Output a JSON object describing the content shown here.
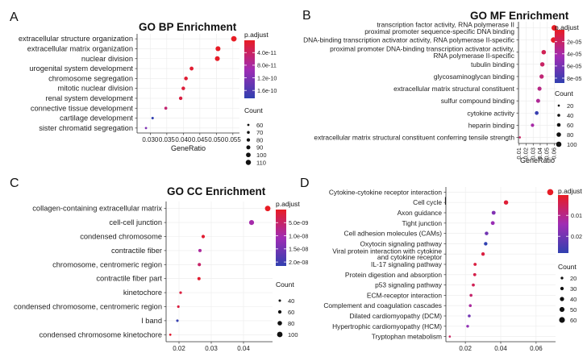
{
  "chart_data": [
    {
      "panel": "A",
      "type": "scatter",
      "title": "GO BP Enrichment",
      "xlabel": "GeneRatio",
      "ylabel": "",
      "xlim": [
        0.026,
        0.057
      ],
      "xticks": [
        "0.030",
        "0.035",
        "0.040",
        "0.045",
        "0.050",
        "0.055"
      ],
      "xtick_values": [
        0.03,
        0.035,
        0.04,
        0.045,
        0.05,
        0.055
      ],
      "categories": [
        "extracellular structure organization",
        "extracellular matrix organization",
        "nuclear division",
        "urogenital system development",
        "chromosome segregation",
        "mitotic nuclear division",
        "renal system development",
        "connective tissue development",
        "cartilage development",
        "sister chromatid segregation"
      ],
      "x": [
        0.0553,
        0.0505,
        0.0503,
        0.0425,
        0.0408,
        0.04,
        0.0392,
        0.0347,
        0.0307,
        0.0287
      ],
      "count": [
        115,
        105,
        104,
        88,
        85,
        83,
        81,
        72,
        64,
        60
      ],
      "color_value": [
        1e-12,
        2e-12,
        3e-12,
        1e-11,
        1.2e-11,
        1.5e-11,
        2e-11,
        5e-11,
        1.85e-10,
        1.2e-10
      ],
      "color_legend": {
        "title": "p.adjust",
        "ticks": [
          "4.0e-11",
          "8.0e-11",
          "1.2e-10",
          "1.6e-10"
        ],
        "tick_values": [
          4e-11,
          8e-11,
          1.2e-10,
          1.6e-10
        ],
        "range": [
          1e-12,
          1.85e-10
        ]
      },
      "size_legend": {
        "title": "Count",
        "labels": [
          "60",
          "70",
          "80",
          "90",
          "100",
          "110"
        ],
        "values": [
          60,
          70,
          80,
          90,
          100,
          110
        ],
        "range": [
          60,
          115
        ]
      }
    },
    {
      "panel": "B",
      "type": "scatter",
      "title": "GO MF Enrichment",
      "xlabel": "GeneRatio",
      "ylabel": "",
      "xlim": [
        0.009,
        0.063
      ],
      "xticks": [
        "0.01",
        "0.02",
        "0.03",
        "0.04",
        "0.05",
        "0.06"
      ],
      "xtick_values": [
        0.01,
        0.02,
        0.03,
        0.04,
        0.05,
        0.06
      ],
      "categories": [
        [
          "transcription factor activity, RNA polymerase II",
          "proximal promoter sequence-specific DNA binding"
        ],
        [
          "DNA-binding transcription activator activity, RNA polymerase II-specific"
        ],
        [
          "proximal promoter DNA-binding transcription activator activity,",
          "RNA polymerase II-specific"
        ],
        [
          "tubulin binding"
        ],
        [
          "glycosaminoglycan binding"
        ],
        [
          "extracellular matrix structural constituent"
        ],
        [
          "sulfur compound binding"
        ],
        [
          "cytokine activity"
        ],
        [
          "heparin binding"
        ],
        [
          "extracellular matrix structural constituent conferring tensile strength"
        ]
      ],
      "x": [
        0.06,
        0.059,
        0.045,
        0.043,
        0.042,
        0.039,
        0.037,
        0.035,
        0.029,
        0.011
      ],
      "count": [
        105,
        103,
        80,
        77,
        75,
        70,
        67,
        62,
        52,
        18
      ],
      "color_value": [
        5e-07,
        1e-06,
        1.5e-05,
        2e-05,
        2.5e-05,
        3e-05,
        3.5e-05,
        8.5e-05,
        4e-05,
        2e-05
      ],
      "color_legend": {
        "title": "p.adjust",
        "ticks": [
          "2e-05",
          "4e-05",
          "6e-05",
          "8e-05"
        ],
        "tick_values": [
          2e-05,
          4e-05,
          6e-05,
          8e-05
        ],
        "range": [
          5e-07,
          8.8e-05
        ]
      },
      "size_legend": {
        "title": "Count",
        "labels": [
          "20",
          "40",
          "60",
          "80",
          "100"
        ],
        "values": [
          20,
          40,
          60,
          80,
          100
        ],
        "range": [
          15,
          105
        ]
      }
    },
    {
      "panel": "C",
      "type": "scatter",
      "title": "GO CC Enrichment",
      "xlabel": "GeneRatio",
      "ylabel": "",
      "xlim": [
        0.016,
        0.049
      ],
      "xticks": [
        "0.02",
        "0.03",
        "0.04"
      ],
      "xtick_values": [
        0.02,
        0.03,
        0.04
      ],
      "categories": [
        "collagen-containing extracellular matrix",
        "cell-cell junction",
        "condensed chromosome",
        "contractile fiber",
        "chromosome, centromeric region",
        "contractile fiber part",
        "kinetochore",
        "condensed chromosome, centromeric region",
        "I band",
        "condensed chromosome kinetochore"
      ],
      "x": [
        0.0475,
        0.0425,
        0.0275,
        0.0265,
        0.0263,
        0.0262,
        0.0205,
        0.0198,
        0.0195,
        0.0173
      ],
      "count": [
        100,
        90,
        58,
        56,
        56,
        55,
        43,
        42,
        41,
        36
      ],
      "color_value": [
        1e-11,
        1e-08,
        1e-09,
        9e-09,
        5e-09,
        1e-09,
        2e-09,
        2e-09,
        2.1e-08,
        1e-09
      ],
      "color_legend": {
        "title": "p.adjust",
        "ticks": [
          "5.0e-09",
          "1.0e-08",
          "1.5e-08",
          "2.0e-08"
        ],
        "tick_values": [
          5e-09,
          1e-08,
          1.5e-08,
          2e-08
        ],
        "range": [
          1e-11,
          2.15e-08
        ]
      },
      "size_legend": {
        "title": "Count",
        "labels": [
          "40",
          "60",
          "80",
          "100"
        ],
        "values": [
          40,
          60,
          80,
          100
        ],
        "range": [
          36,
          100
        ]
      }
    },
    {
      "panel": "D",
      "type": "scatter",
      "title": "KEGG Enrichment",
      "xlabel": "GeneRatio",
      "ylabel": "",
      "xlim": [
        0.009,
        0.071
      ],
      "xticks": [
        "0.02",
        "0.04",
        "0.06"
      ],
      "xtick_values": [
        0.02,
        0.04,
        0.06
      ],
      "categories": [
        [
          "Cytokine-cytokine receptor interaction"
        ],
        [
          "Cell cycle"
        ],
        [
          "Axon guidance"
        ],
        [
          "Tight junction"
        ],
        [
          "Cell adhesion molecules (CAMs)"
        ],
        [
          "Oxytocin signaling pathway"
        ],
        [
          "Viral protein interaction with cytokine",
          "and cytokine receptor"
        ],
        [
          "IL-17 signaling pathway"
        ],
        [
          "Protein digestion and absorption"
        ],
        [
          "p53 signaling pathway"
        ],
        [
          "ECM-receptor interaction"
        ],
        [
          "Complement and coagulation cascades"
        ],
        [
          "Dilated cardiomyopathy (DCM)"
        ],
        [
          "Hypertrophic cardiomyopathy (HCM)"
        ],
        [
          "Tryptophan metabolism"
        ]
      ],
      "x": [
        0.068,
        0.043,
        0.036,
        0.0355,
        0.032,
        0.0315,
        0.03,
        0.0255,
        0.0253,
        0.0245,
        0.0232,
        0.0228,
        0.0222,
        0.0213,
        0.0112
      ],
      "count": [
        65,
        42,
        36,
        35,
        32,
        31,
        30,
        25,
        25,
        24,
        23,
        22,
        22,
        21,
        12
      ],
      "color_value": [
        0.0005,
        0.002,
        0.018,
        0.015,
        0.02,
        0.028,
        0.003,
        0.003,
        0.004,
        0.005,
        0.007,
        0.012,
        0.02,
        0.016,
        0.006
      ],
      "color_legend": {
        "title": "p.adjust",
        "ticks": [
          "0.01",
          "0.02"
        ],
        "tick_values": [
          0.01,
          0.02
        ],
        "range": [
          0.0003,
          0.028
        ]
      },
      "size_legend": {
        "title": "Count",
        "labels": [
          "20",
          "30",
          "40",
          "50",
          "60"
        ],
        "values": [
          20,
          30,
          40,
          50,
          60
        ],
        "range": [
          12,
          65
        ]
      }
    }
  ]
}
